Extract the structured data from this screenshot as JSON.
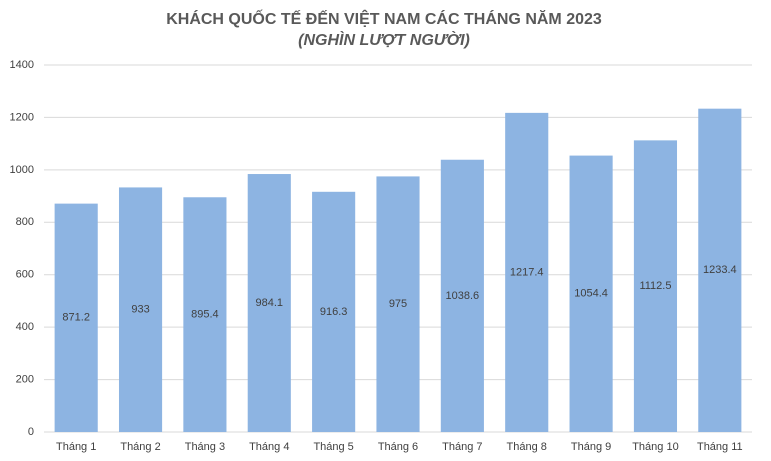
{
  "chart_data": {
    "type": "bar",
    "title": "KHÁCH QUỐC TẾ ĐẾN VIỆT NAM CÁC THÁNG NĂM 2023",
    "subtitle": "(NGHÌN LƯỢT NGƯỜI)",
    "categories": [
      "Tháng 1",
      "Tháng 2",
      "Tháng 3",
      "Tháng 4",
      "Tháng 5",
      "Tháng 6",
      "Tháng 7",
      "Tháng 8",
      "Tháng 9",
      "Tháng 10",
      "Tháng 11"
    ],
    "values": [
      871.2,
      933,
      895.4,
      984.1,
      916.3,
      975,
      1038.6,
      1217.4,
      1054.4,
      1112.5,
      1233.4
    ],
    "color": "#8db4e2",
    "ylim": [
      0,
      1400
    ],
    "yticks": [
      0,
      200,
      400,
      600,
      800,
      1000,
      1200,
      1400
    ],
    "grid": true
  }
}
